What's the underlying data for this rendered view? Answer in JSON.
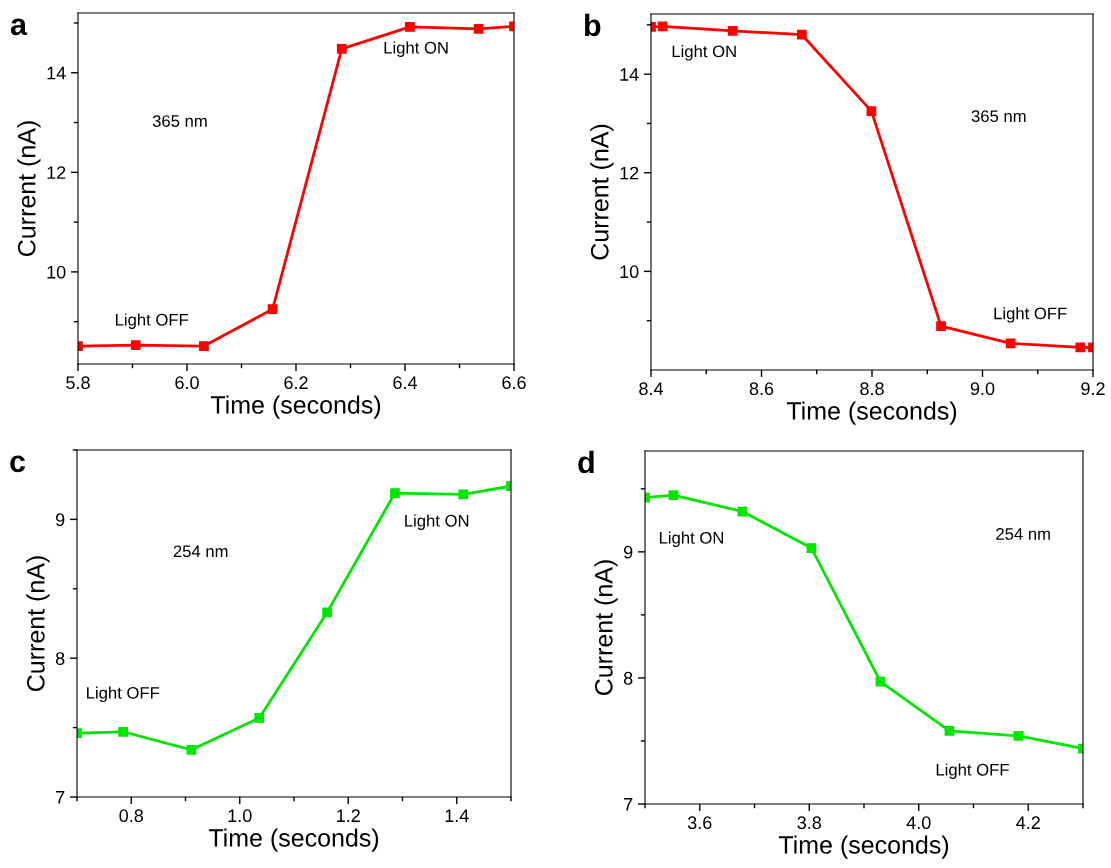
{
  "chart_data": [
    {
      "type": "line",
      "title": "a",
      "xlabel": "Time (seconds)",
      "ylabel": "Current (nA)",
      "marker": "square",
      "line_style": "solid",
      "grid": false,
      "x": [
        5.8,
        5.906,
        6.031,
        6.157,
        6.284,
        6.409,
        6.535,
        6.6
      ],
      "series": [
        {
          "color": "#ff0000",
          "values": [
            8.51,
            8.53,
            8.51,
            9.25,
            14.48,
            14.92,
            14.88,
            14.93
          ]
        }
      ],
      "xlim": [
        5.8,
        6.6
      ],
      "xticks": [
        5.8,
        {
          "value": 5.9,
          "label": null
        },
        {
          "value": 6,
          "label": "6.0"
        },
        {
          "value": 6.1,
          "label": null
        },
        6.2,
        {
          "value": 6.3,
          "label": null
        },
        6.4,
        {
          "value": 6.5,
          "label": null
        },
        6.6
      ],
      "ylim": [
        8.15,
        15.2
      ],
      "yticks": [
        {
          "value": 9,
          "label": null
        },
        10,
        {
          "value": 11,
          "label": null
        },
        12,
        {
          "value": 13,
          "label": null
        },
        14,
        {
          "value": 15,
          "label": null
        }
      ],
      "annotations": [
        "365 nm",
        "Light OFF",
        "Light ON"
      ]
    },
    {
      "type": "line",
      "title": "b",
      "xlabel": "Time (seconds)",
      "ylabel": "Current (nA)",
      "marker": "square",
      "line_style": "solid",
      "grid": false,
      "x": [
        8.4,
        8.421,
        8.548,
        8.673,
        8.799,
        8.925,
        9.051,
        9.177,
        9.2
      ],
      "series": [
        {
          "color": "#ff0000",
          "values": [
            14.96,
            14.97,
            14.88,
            14.8,
            13.25,
            8.89,
            8.54,
            8.46,
            8.46
          ]
        }
      ],
      "xlim": [
        8.4,
        9.2
      ],
      "xticks": [
        8.4,
        {
          "value": 8.5,
          "label": null
        },
        8.6,
        {
          "value": 8.7,
          "label": null
        },
        8.8,
        {
          "value": 8.9,
          "label": null
        },
        {
          "value": 9,
          "label": "9.0"
        },
        {
          "value": 9.1,
          "label": null
        },
        9.2
      ],
      "ylim": [
        8.0,
        15.22
      ],
      "yticks": [
        {
          "value": 9,
          "label": null
        },
        10,
        {
          "value": 11,
          "label": null
        },
        12,
        {
          "value": 13,
          "label": null
        },
        14,
        {
          "value": 15,
          "label": null
        }
      ],
      "annotations": [
        "Light ON",
        "365 nm",
        "Light OFF"
      ]
    },
    {
      "type": "line",
      "title": "c",
      "xlabel": "Time (seconds)",
      "ylabel": "Current (nA)",
      "marker": "square",
      "line_style": "solid",
      "grid": false,
      "x": [
        0.7,
        0.785,
        0.911,
        1.036,
        1.161,
        1.286,
        1.412,
        1.5
      ],
      "series": [
        {
          "color": "#00e600",
          "values": [
            7.46,
            7.47,
            7.34,
            7.57,
            8.33,
            9.19,
            9.18,
            9.24
          ]
        }
      ],
      "xlim": [
        0.7,
        1.5
      ],
      "xticks": [
        {
          "value": 0.7,
          "label": null
        },
        0.8,
        {
          "value": 0.9,
          "label": null
        },
        {
          "value": 1,
          "label": "1.0"
        },
        {
          "value": 1.1,
          "label": null
        },
        1.2,
        {
          "value": 1.3,
          "label": null
        },
        1.4,
        {
          "value": 1.5,
          "label": null
        }
      ],
      "ylim": [
        7.0,
        9.5
      ],
      "yticks": [
        7,
        {
          "value": 7.5,
          "label": null
        },
        8,
        {
          "value": 8.5,
          "label": null
        },
        9,
        {
          "value": 9.5,
          "label": null
        }
      ],
      "annotations": [
        "254 nm",
        "Light OFF",
        "Light ON"
      ]
    },
    {
      "type": "line",
      "title": "d",
      "xlabel": "Time (seconds)",
      "ylabel": "Current (nA)",
      "marker": "square",
      "line_style": "solid",
      "grid": false,
      "x": [
        3.5,
        3.552,
        3.678,
        3.804,
        3.93,
        4.056,
        4.182,
        4.3
      ],
      "series": [
        {
          "color": "#00e600",
          "values": [
            9.43,
            9.45,
            9.32,
            9.03,
            7.97,
            7.58,
            7.54,
            7.44
          ]
        }
      ],
      "xlim": [
        3.5,
        4.3
      ],
      "xticks": [
        {
          "value": 3.5,
          "label": null
        },
        3.6,
        {
          "value": 3.7,
          "label": null
        },
        3.8,
        {
          "value": 3.9,
          "label": null
        },
        {
          "value": 4,
          "label": "4.0"
        },
        {
          "value": 4.1,
          "label": null
        },
        4.2,
        {
          "value": 4.3,
          "label": null
        }
      ],
      "ylim": [
        7.0,
        9.8
      ],
      "yticks": [
        7,
        {
          "value": 7.5,
          "label": null
        },
        8,
        {
          "value": 8.5,
          "label": null
        },
        9,
        {
          "value": 9.5,
          "label": null
        }
      ],
      "annotations": [
        "Light ON",
        "254 nm",
        "Light OFF"
      ]
    }
  ]
}
